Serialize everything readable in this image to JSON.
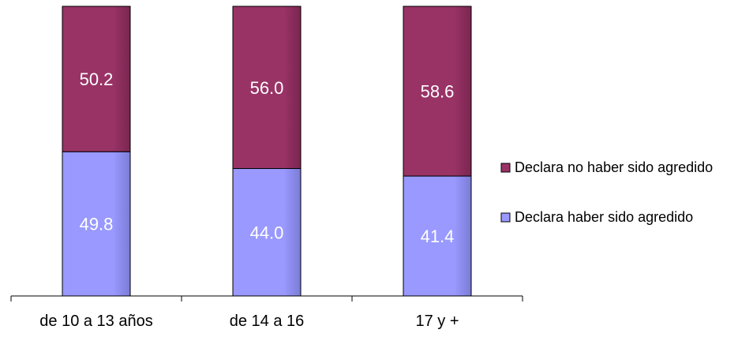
{
  "chart_data": {
    "type": "bar",
    "stacked": true,
    "categories": [
      "de 10 a 13 años",
      "de 14 a 16",
      "17 y +"
    ],
    "series": [
      {
        "name": "Declara haber sido agredido",
        "values": [
          49.8,
          44.0,
          41.4
        ],
        "labels": [
          "49.8",
          "44.0",
          "41.4"
        ],
        "color": "#9999ff"
      },
      {
        "name": "Declara no haber sido agredido",
        "values": [
          50.2,
          56.0,
          58.6
        ],
        "labels": [
          "50.2",
          "56.0",
          "58.6"
        ],
        "color": "#993366"
      }
    ],
    "ylim": [
      0,
      100
    ],
    "legend_position": "right",
    "legend_order": [
      "Declara no haber sido agredido",
      "Declara haber sido agredido"
    ],
    "grid": false,
    "y_axis_visible": false,
    "title": "",
    "xlabel": "",
    "ylabel": ""
  }
}
